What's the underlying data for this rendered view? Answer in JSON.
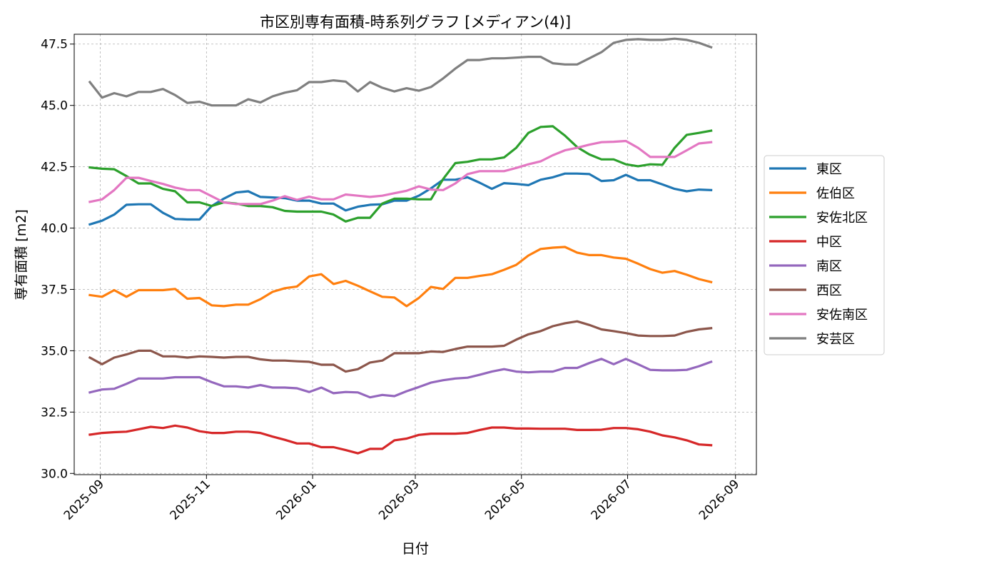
{
  "chart_data": {
    "type": "line",
    "title": "市区別専有面積-時系列グラフ [メディアン(4)]",
    "xlabel": "日付",
    "ylabel": "専有面積 [m2]",
    "xlim": [
      "2025-08-17",
      "2026-09-13"
    ],
    "ylim": [
      29.95,
      47.9
    ],
    "grid": true,
    "legend_position": "outside-right",
    "x_ticks": [
      "2025-09-01",
      "2025-11-01",
      "2026-01-01",
      "2026-03-01",
      "2026-05-01",
      "2026-07-01",
      "2026-09-01"
    ],
    "x_tick_labels": [
      "2025-09",
      "2025-11",
      "2026-01",
      "2026-03",
      "2026-05",
      "2026-07",
      "2026-09"
    ],
    "y_ticks": [
      30.0,
      32.5,
      35.0,
      37.5,
      40.0,
      42.5,
      45.0,
      47.5
    ],
    "y_tick_labels": [
      "30.0",
      "32.5",
      "35.0",
      "37.5",
      "40.0",
      "42.5",
      "45.0",
      "47.5"
    ],
    "x": [
      "2025-08-26",
      "2025-09-02",
      "2025-09-09",
      "2025-09-16",
      "2025-09-23",
      "2025-09-30",
      "2025-10-07",
      "2025-10-14",
      "2025-10-21",
      "2025-10-28",
      "2025-11-04",
      "2025-11-11",
      "2025-11-18",
      "2025-11-25",
      "2025-12-02",
      "2025-12-09",
      "2025-12-16",
      "2025-12-23",
      "2025-12-30",
      "2026-01-06",
      "2026-01-13",
      "2026-01-20",
      "2026-01-27",
      "2026-02-03",
      "2026-02-10",
      "2026-02-17",
      "2026-02-24",
      "2026-03-03",
      "2026-03-10",
      "2026-03-17",
      "2026-03-24",
      "2026-03-31",
      "2026-04-07",
      "2026-04-14",
      "2026-04-21",
      "2026-04-28",
      "2026-05-05",
      "2026-05-12",
      "2026-05-19",
      "2026-05-26",
      "2026-06-02",
      "2026-06-09",
      "2026-06-16",
      "2026-06-23",
      "2026-06-30",
      "2026-07-07",
      "2026-07-14",
      "2026-07-21",
      "2026-07-28",
      "2026-08-04",
      "2026-08-11",
      "2026-08-18"
    ],
    "series": [
      {
        "name": "東区",
        "color": "#1f77b4",
        "values": [
          40.15,
          40.3,
          40.55,
          40.95,
          40.97,
          40.97,
          40.62,
          40.37,
          40.35,
          40.35,
          40.9,
          41.2,
          41.45,
          41.5,
          41.27,
          41.25,
          41.22,
          41.12,
          41.12,
          41.0,
          41.0,
          40.72,
          40.87,
          40.95,
          40.97,
          41.12,
          41.12,
          41.32,
          41.62,
          41.97,
          41.97,
          42.07,
          41.85,
          41.6,
          41.83,
          41.8,
          41.75,
          41.97,
          42.07,
          42.22,
          42.22,
          42.2,
          41.92,
          41.95,
          42.17,
          41.95,
          41.95,
          41.78,
          41.6,
          41.5,
          41.57,
          41.55
        ]
      },
      {
        "name": "佐伯区",
        "color": "#ff7f0e",
        "values": [
          37.27,
          37.2,
          37.47,
          37.2,
          37.47,
          37.47,
          37.47,
          37.52,
          37.12,
          37.15,
          36.85,
          36.82,
          36.88,
          36.88,
          37.1,
          37.4,
          37.55,
          37.62,
          38.03,
          38.12,
          37.72,
          37.85,
          37.65,
          37.42,
          37.2,
          37.17,
          36.82,
          37.15,
          37.6,
          37.52,
          37.97,
          37.97,
          38.05,
          38.12,
          38.3,
          38.5,
          38.88,
          39.15,
          39.2,
          39.23,
          39.0,
          38.9,
          38.9,
          38.8,
          38.75,
          38.55,
          38.33,
          38.18,
          38.25,
          38.1,
          37.92,
          37.8
        ]
      },
      {
        "name": "安佐北区",
        "color": "#2ca02c",
        "values": [
          42.47,
          42.42,
          42.4,
          42.12,
          41.82,
          41.82,
          41.6,
          41.5,
          41.05,
          41.05,
          40.9,
          41.05,
          41.0,
          40.9,
          40.9,
          40.85,
          40.7,
          40.67,
          40.67,
          40.67,
          40.55,
          40.27,
          40.42,
          40.42,
          41.0,
          41.2,
          41.2,
          41.17,
          41.17,
          42.0,
          42.65,
          42.7,
          42.8,
          42.8,
          42.88,
          43.27,
          43.88,
          44.12,
          44.15,
          43.77,
          43.3,
          43.0,
          42.8,
          42.8,
          42.6,
          42.52,
          42.6,
          42.58,
          43.27,
          43.8,
          43.88,
          43.97
        ]
      },
      {
        "name": "中区",
        "color": "#d62728",
        "values": [
          31.58,
          31.65,
          31.68,
          31.7,
          31.8,
          31.9,
          31.85,
          31.95,
          31.87,
          31.72,
          31.65,
          31.65,
          31.7,
          31.7,
          31.65,
          31.5,
          31.37,
          31.22,
          31.22,
          31.07,
          31.07,
          30.95,
          30.82,
          31.0,
          31.0,
          31.35,
          31.42,
          31.57,
          31.62,
          31.62,
          31.62,
          31.65,
          31.77,
          31.87,
          31.87,
          31.83,
          31.83,
          31.82,
          31.82,
          31.82,
          31.77,
          31.77,
          31.78,
          31.85,
          31.85,
          31.8,
          31.7,
          31.55,
          31.47,
          31.35,
          31.18,
          31.15
        ]
      },
      {
        "name": "南区",
        "color": "#9467bd",
        "values": [
          33.3,
          33.42,
          33.45,
          33.65,
          33.87,
          33.87,
          33.87,
          33.92,
          33.92,
          33.92,
          33.72,
          33.55,
          33.55,
          33.5,
          33.6,
          33.5,
          33.5,
          33.47,
          33.32,
          33.5,
          33.27,
          33.32,
          33.3,
          33.1,
          33.2,
          33.15,
          33.35,
          33.52,
          33.7,
          33.8,
          33.87,
          33.9,
          34.02,
          34.15,
          34.25,
          34.15,
          34.12,
          34.15,
          34.15,
          34.3,
          34.3,
          34.5,
          34.67,
          34.45,
          34.67,
          34.45,
          34.22,
          34.2,
          34.2,
          34.22,
          34.37,
          34.55
        ]
      },
      {
        "name": "西区",
        "color": "#8c564b",
        "values": [
          34.72,
          34.45,
          34.72,
          34.85,
          35.0,
          35.0,
          34.77,
          34.77,
          34.72,
          34.77,
          34.75,
          34.72,
          34.75,
          34.75,
          34.65,
          34.6,
          34.6,
          34.57,
          34.55,
          34.43,
          34.43,
          34.15,
          34.25,
          34.52,
          34.6,
          34.9,
          34.9,
          34.9,
          34.97,
          34.95,
          35.07,
          35.17,
          35.17,
          35.17,
          35.2,
          35.45,
          35.67,
          35.8,
          36.0,
          36.12,
          36.2,
          36.05,
          35.87,
          35.8,
          35.72,
          35.62,
          35.6,
          35.6,
          35.62,
          35.77,
          35.87,
          35.92
        ]
      },
      {
        "name": "安佐南区",
        "color": "#e377c2",
        "values": [
          41.07,
          41.17,
          41.55,
          42.05,
          42.05,
          41.92,
          41.8,
          41.65,
          41.55,
          41.55,
          41.3,
          41.05,
          40.98,
          40.98,
          40.98,
          41.12,
          41.3,
          41.15,
          41.28,
          41.17,
          41.17,
          41.37,
          41.32,
          41.27,
          41.32,
          41.42,
          41.52,
          41.7,
          41.57,
          41.55,
          41.82,
          42.2,
          42.32,
          42.32,
          42.32,
          42.45,
          42.6,
          42.72,
          42.97,
          43.17,
          43.27,
          43.4,
          43.5,
          43.52,
          43.55,
          43.27,
          42.9,
          42.9,
          42.9,
          43.17,
          43.45,
          43.5
        ]
      },
      {
        "name": "安芸区",
        "color": "#7f7f7f",
        "values": [
          45.95,
          45.32,
          45.5,
          45.37,
          45.55,
          45.55,
          45.67,
          45.42,
          45.1,
          45.15,
          45.0,
          45.0,
          45.0,
          45.25,
          45.12,
          45.37,
          45.52,
          45.62,
          45.95,
          45.95,
          46.02,
          45.97,
          45.57,
          45.95,
          45.72,
          45.57,
          45.7,
          45.6,
          45.75,
          46.1,
          46.5,
          46.85,
          46.85,
          46.92,
          46.92,
          46.95,
          46.98,
          46.98,
          46.72,
          46.67,
          46.67,
          46.92,
          47.17,
          47.55,
          47.67,
          47.7,
          47.67,
          47.67,
          47.72,
          47.67,
          47.55,
          47.37
        ]
      }
    ]
  }
}
